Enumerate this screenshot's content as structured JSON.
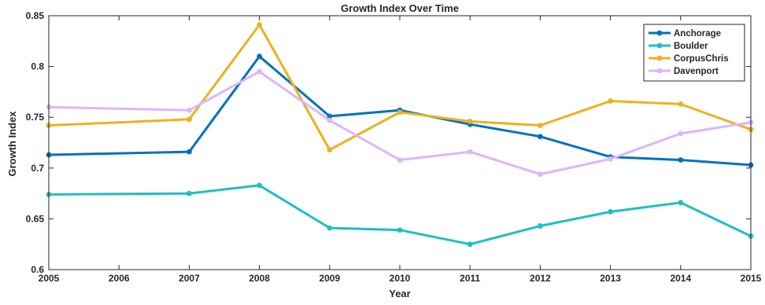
{
  "chart_data": {
    "type": "line",
    "title": "Growth Index Over Time",
    "xlabel": "Year",
    "ylabel": "Growth Index",
    "x_tick_labels": [
      "2005",
      "2006",
      "2007",
      "2008",
      "2009",
      "2010",
      "2011",
      "2012",
      "2013",
      "2014",
      "2015"
    ],
    "x_positions": [
      0,
      1,
      2,
      3,
      4,
      5,
      6,
      7,
      8,
      9,
      10
    ],
    "y_ticks": [
      0.6,
      0.65,
      0.7,
      0.75,
      0.8,
      0.85
    ],
    "y_tick_labels": [
      "0.6",
      "0.65",
      "0.7",
      "0.75",
      "0.8",
      "0.85"
    ],
    "ylim": [
      0.6,
      0.85
    ],
    "xlim": [
      0,
      10
    ],
    "grid": false,
    "legend_position": "top-right",
    "series": [
      {
        "name": "Anchorage",
        "color": "#0072bd",
        "x": [
          0,
          2,
          3,
          4,
          5,
          6,
          7,
          8,
          9,
          10
        ],
        "values": [
          0.713,
          0.716,
          0.81,
          0.751,
          0.757,
          0.743,
          0.731,
          0.711,
          0.708,
          0.703
        ]
      },
      {
        "name": "Boulder",
        "color": "#1fbfbf",
        "x": [
          0,
          2,
          3,
          4,
          5,
          6,
          7,
          8,
          9,
          10
        ],
        "values": [
          0.674,
          0.675,
          0.683,
          0.641,
          0.639,
          0.625,
          0.643,
          0.657,
          0.666,
          0.633
        ]
      },
      {
        "name": "CorpusChris",
        "color": "#edb120",
        "x": [
          0,
          2,
          3,
          4,
          5,
          6,
          7,
          8,
          9,
          10
        ],
        "values": [
          0.742,
          0.748,
          0.841,
          0.718,
          0.755,
          0.746,
          0.742,
          0.766,
          0.763,
          0.738
        ]
      },
      {
        "name": "Davenport",
        "color": "#dbb6ff",
        "x": [
          0,
          2,
          3,
          4,
          5,
          6,
          7,
          8,
          9,
          10
        ],
        "values": [
          0.76,
          0.757,
          0.795,
          0.747,
          0.708,
          0.716,
          0.694,
          0.709,
          0.734,
          0.745
        ]
      }
    ]
  }
}
